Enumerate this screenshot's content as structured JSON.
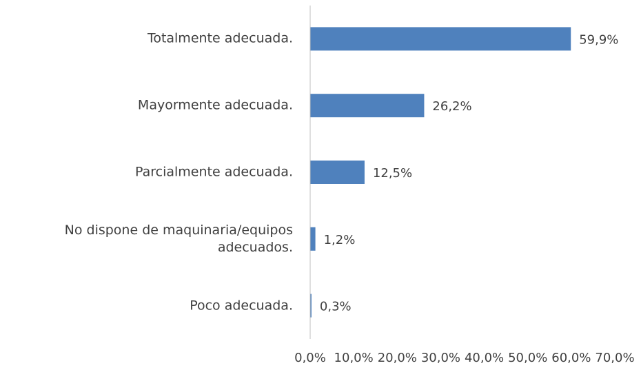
{
  "chart_data": {
    "type": "bar",
    "orientation": "horizontal",
    "categories": [
      "Totalmente adecuada.",
      "Mayormente adecuada.",
      "Parcialmente adecuada.",
      "No dispone de maquinaria/equipos adecuados.",
      "Poco adecuada."
    ],
    "values": [
      59.9,
      26.2,
      12.5,
      1.2,
      0.3
    ],
    "value_labels": [
      "59,9%",
      "26,2%",
      "12,5%",
      "1,2%",
      "0,3%"
    ],
    "color": "#4f81bd",
    "xlim": [
      0,
      70
    ],
    "xticks": [
      {
        "value": 0,
        "label": "0,0%"
      },
      {
        "value": 10,
        "label": "10,0%"
      },
      {
        "value": 20,
        "label": "20,0%"
      },
      {
        "value": 30,
        "label": "30,0%"
      },
      {
        "value": 40,
        "label": "40,0%"
      },
      {
        "value": 50,
        "label": "50,0%"
      },
      {
        "value": 60,
        "label": "60,0%"
      },
      {
        "value": 70,
        "label": "70,0%"
      }
    ],
    "grid": false
  }
}
